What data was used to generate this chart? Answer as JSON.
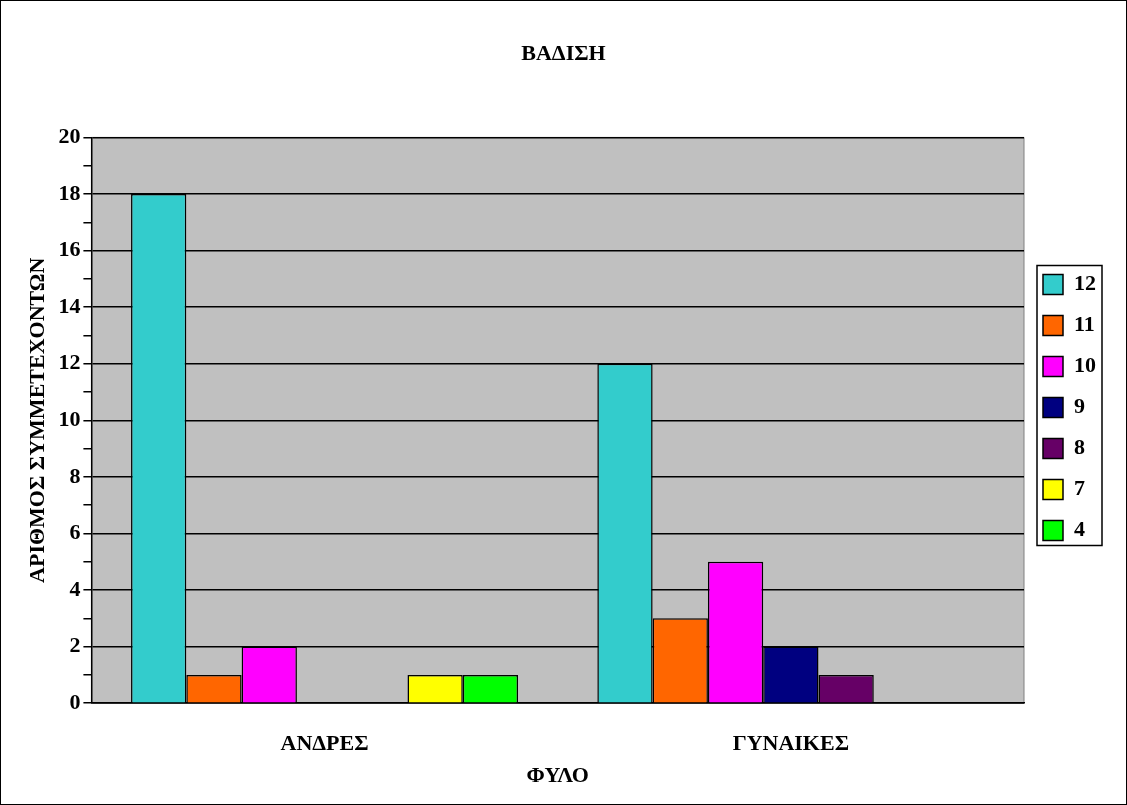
{
  "chart_data": {
    "type": "bar",
    "title": "ΒΑΔΙΣΗ",
    "xlabel": "ΦΥΛΟ",
    "ylabel": "ΑΡΙΘΜΟΣ ΣΥΜΜΕΤΕΧΟΝΤΩΝ",
    "categories": [
      "ΑΝΔΡΕΣ",
      "ΓΥΝΑΙΚΕΣ"
    ],
    "series": [
      {
        "name": "12",
        "color": "#33cccc",
        "values": [
          18,
          12
        ]
      },
      {
        "name": "11",
        "color": "#ff6600",
        "values": [
          1,
          3
        ]
      },
      {
        "name": "10",
        "color": "#ff00ff",
        "values": [
          2,
          5
        ]
      },
      {
        "name": "9",
        "color": "#000080",
        "values": [
          0,
          2
        ]
      },
      {
        "name": "8",
        "color": "#660066",
        "values": [
          0,
          1
        ]
      },
      {
        "name": "7",
        "color": "#ffff00",
        "values": [
          1,
          0
        ]
      },
      {
        "name": "4",
        "color": "#00ff00",
        "values": [
          1,
          0
        ]
      }
    ],
    "ylim": [
      0,
      20
    ],
    "yticks": [
      0,
      {
        "value": 1,
        "label": null
      },
      2,
      {
        "value": 3,
        "label": null
      },
      4,
      {
        "value": 5,
        "label": null
      },
      6,
      {
        "value": 7,
        "label": null
      },
      8,
      {
        "value": 9,
        "label": null
      },
      10,
      {
        "value": 11,
        "label": null
      },
      12,
      {
        "value": 13,
        "label": null
      },
      14,
      {
        "value": 15,
        "label": null
      },
      16,
      {
        "value": 17,
        "label": null
      },
      18,
      {
        "value": 19,
        "label": null
      },
      20
    ],
    "grid": "y",
    "legend": "right"
  }
}
